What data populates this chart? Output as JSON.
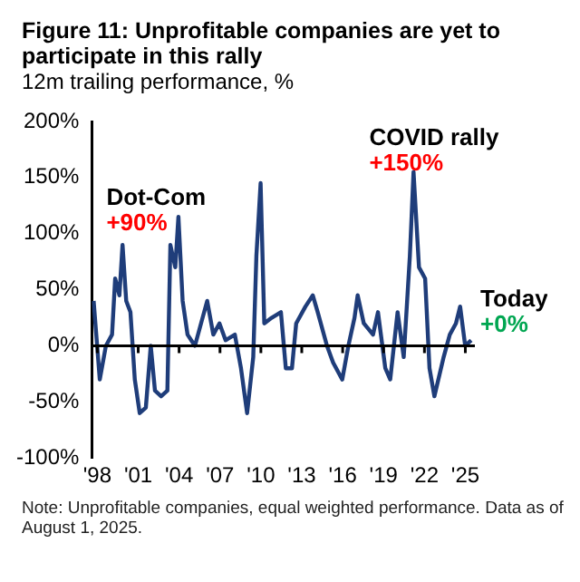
{
  "chart_data": {
    "type": "line",
    "title": "Figure 11: Unprofitable companies are yet to participate in this rally",
    "subtitle": "12m trailing performance, %",
    "annotations": [
      "Dot-Com",
      "+90%",
      "COVID rally",
      "+150%",
      "Today",
      "+0%",
      "Note: Unprofitable companies, equal weighted performance. Data as of August 1, 2025."
    ],
    "series": [
      {
        "color": "#1f3d7a",
        "x": [
          1997.73,
          1998.18,
          1998.63,
          1999.08,
          1999.31,
          1999.62,
          1999.85,
          2000.12,
          2000.43,
          2000.75,
          2001.11,
          2001.56,
          2001.92,
          2002.23,
          2002.68,
          2003.14,
          2003.36,
          2003.72,
          2003.95,
          2004.26,
          2004.62,
          2005.16,
          2005.61,
          2006.06,
          2006.51,
          2006.96,
          2007.41,
          2008.09,
          2008.54,
          2008.99,
          2009.44,
          2009.67,
          2009.98,
          2010.25,
          2010.79,
          2011.47,
          2011.83,
          2012.28,
          2012.59,
          2013.27,
          2013.81,
          2014.17,
          2014.85,
          2015.3,
          2015.97,
          2016.42,
          2016.87,
          2017.1,
          2017.55,
          2018.23,
          2018.59,
          2019.13,
          2019.49,
          2020.03,
          2020.48,
          2020.93,
          2021.2,
          2021.6,
          2022.05,
          2022.37,
          2022.73,
          2023.41,
          2023.86,
          2024.31,
          2024.62,
          2024.99,
          2025.43
        ],
        "values": [
          40,
          -30,
          0,
          10,
          60,
          45,
          90,
          40,
          30,
          -30,
          -60,
          -55,
          0,
          -40,
          -45,
          -40,
          90,
          70,
          115,
          40,
          10,
          0,
          20,
          40,
          10,
          20,
          5,
          10,
          -20,
          -60,
          -10,
          80,
          145,
          20,
          25,
          30,
          -20,
          -20,
          20,
          35,
          45,
          30,
          0,
          -15,
          -30,
          0,
          25,
          45,
          20,
          10,
          30,
          -20,
          -30,
          30,
          -10,
          80,
          155,
          70,
          60,
          -20,
          -45,
          -10,
          10,
          20,
          35,
          0,
          5
        ]
      }
    ],
    "xlim": [
      1997.6,
      2025.7
    ],
    "xticks": [
      {
        "value": 1998,
        "label": "'98"
      },
      {
        "value": 2001,
        "label": "'01"
      },
      {
        "value": 2004,
        "label": "'04"
      },
      {
        "value": 2007,
        "label": "'07"
      },
      {
        "value": 2010,
        "label": "'10"
      },
      {
        "value": 2013,
        "label": "'13"
      },
      {
        "value": 2016,
        "label": "'16"
      },
      {
        "value": 2019,
        "label": "'19"
      },
      {
        "value": 2022,
        "label": "'22"
      },
      {
        "value": 2025,
        "label": "'25"
      }
    ],
    "ylim": [
      -100,
      200
    ],
    "yticks": [
      {
        "value": -100,
        "label": "-100%"
      },
      {
        "value": -50,
        "label": "-50%"
      },
      {
        "value": 0,
        "label": "0%"
      },
      {
        "value": 50,
        "label": "50%"
      },
      {
        "value": 100,
        "label": "100%"
      },
      {
        "value": 150,
        "label": "150%"
      },
      {
        "value": 200,
        "label": "200%"
      }
    ],
    "ref_lines": [
      {
        "axis": "y",
        "value": 0,
        "color": "#000000"
      }
    ],
    "grid": false,
    "legend": false,
    "marker": "none",
    "line_style": "solid"
  }
}
